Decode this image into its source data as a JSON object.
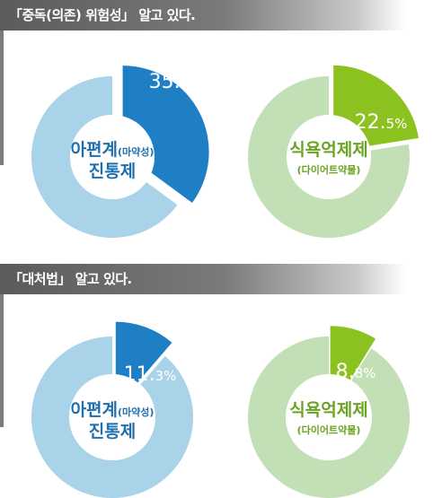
{
  "sections": [
    {
      "title": "「중독(의존) 위험성」 알고 있다."
    },
    {
      "title": "「대처법」 알고 있다."
    }
  ],
  "colors": {
    "blue_highlight": "#1f7fc4",
    "blue_ring": "#a8d3e8",
    "green_highlight": "#8cc21f",
    "green_ring": "#c2dfb5",
    "blue_text": "#1f6fad",
    "green_text": "#6aa321"
  },
  "chart_data": [
    {
      "type": "pie",
      "section": "「중독(의존) 위험성」 알고 있다.",
      "center_label": {
        "line1": "아편계",
        "line1_sub": "(마약성)",
        "line2": "진통제"
      },
      "slices": [
        {
          "value": 35.1
        },
        {
          "value": 64.9
        }
      ],
      "value_label": {
        "int": "35.",
        "frac": "1%"
      },
      "theme": "blue"
    },
    {
      "type": "pie",
      "section": "「중독(의존) 위험성」 알고 있다.",
      "center_label": {
        "line1": "식욕억제제",
        "line2": "(다이어트약물)"
      },
      "slices": [
        {
          "value": 22.5
        },
        {
          "value": 77.5
        }
      ],
      "value_label": {
        "int": "22.",
        "frac": "5%"
      },
      "theme": "green"
    },
    {
      "type": "pie",
      "section": "「대처법」 알고 있다.",
      "center_label": {
        "line1": "아편계",
        "line1_sub": "(마약성)",
        "line2": "진통제"
      },
      "slices": [
        {
          "value": 11.3
        },
        {
          "value": 88.7
        }
      ],
      "value_label": {
        "int": "11.",
        "frac": "3%"
      },
      "theme": "blue"
    },
    {
      "type": "pie",
      "section": "「대처법」 알고 있다.",
      "center_label": {
        "line1": "식욕억제제",
        "line2": "(다이어트약물)"
      },
      "slices": [
        {
          "value": 8.8
        },
        {
          "value": 91.2
        }
      ],
      "value_label": {
        "int": "8.",
        "frac": "8%"
      },
      "theme": "green"
    }
  ]
}
